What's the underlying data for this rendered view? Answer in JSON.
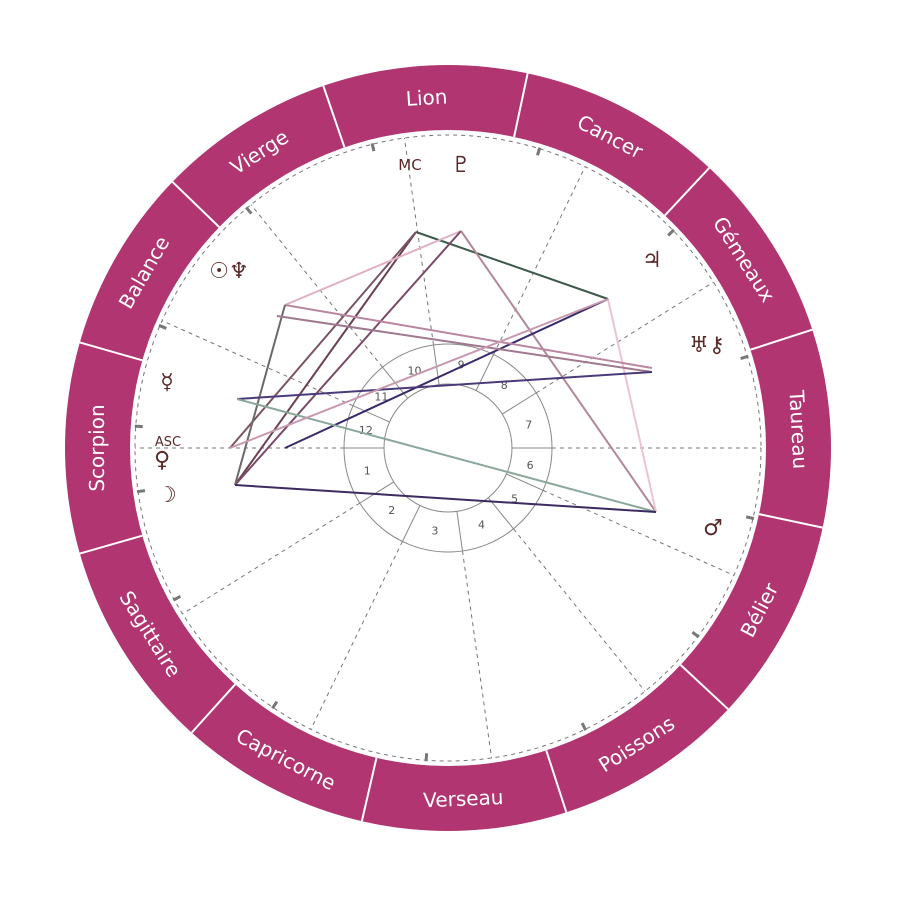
{
  "colors": {
    "ring": "#b03571",
    "divider": "#ffffff",
    "dashed": "#777777",
    "house_ring": "#888888",
    "glyph": "#5a2a2a"
  },
  "signs": [
    {
      "label": "Lion"
    },
    {
      "label": "Cancer"
    },
    {
      "label": "Gémeaux"
    },
    {
      "label": "Taureau"
    },
    {
      "label": "Bélier"
    },
    {
      "label": "Poissons"
    },
    {
      "label": "Verseau"
    },
    {
      "label": "Capricorne"
    },
    {
      "label": "Sagittaire"
    },
    {
      "label": "Scorpion"
    },
    {
      "label": "Balance"
    },
    {
      "label": "Vierge"
    }
  ],
  "houses": [
    "1",
    "2",
    "3",
    "4",
    "5",
    "6",
    "7",
    "8",
    "9",
    "10",
    "11",
    "12"
  ],
  "points": [
    {
      "id": "mc",
      "label": "MC"
    },
    {
      "id": "asc",
      "label": "ASC"
    }
  ],
  "planets": [
    {
      "id": "pluto",
      "glyph": "♇"
    },
    {
      "id": "jupiter",
      "glyph": "♃"
    },
    {
      "id": "uranus-chiron",
      "glyph": "♅⚷"
    },
    {
      "id": "mars",
      "glyph": "♂"
    },
    {
      "id": "venus",
      "glyph": "♀"
    },
    {
      "id": "moon",
      "glyph": "☽"
    },
    {
      "id": "mercury",
      "glyph": "☿"
    },
    {
      "id": "sun-neptune",
      "glyph": "☉♆"
    }
  ],
  "aspects": [
    {
      "from": "mc",
      "to": "jupiter",
      "color": "#3d5a4a"
    },
    {
      "from": "mc",
      "to": "moon",
      "color": "#6a4050"
    },
    {
      "from": "mc",
      "to": "asc",
      "color": "#7a5560"
    },
    {
      "from": "pluto",
      "to": "sun-neptune",
      "color": "#e0b0c4"
    },
    {
      "from": "pluto",
      "to": "moon",
      "color": "#7a4a66"
    },
    {
      "from": "pluto",
      "to": "mars",
      "color": "#b08898"
    },
    {
      "from": "jupiter",
      "to": "mars",
      "color": "#ecc4d2"
    },
    {
      "from": "jupiter",
      "to": "venus",
      "color": "#3a2a6a"
    },
    {
      "from": "sun-neptune",
      "to": "uranus-chiron",
      "color": "#b886a0"
    },
    {
      "from": "sun-neptune",
      "to": "moon",
      "color": "#6a6a6a"
    },
    {
      "from": "sun-neptune",
      "to": "uranus-chiron",
      "color": "#a07890"
    },
    {
      "from": "mercury",
      "to": "uranus-chiron",
      "color": "#4a3a7a"
    },
    {
      "from": "mercury",
      "to": "mars",
      "color": "#8aa89a"
    },
    {
      "from": "moon",
      "to": "mars",
      "color": "#3d2a60"
    },
    {
      "from": "venus",
      "to": "uranus-chiron",
      "color": "#c898b0"
    }
  ]
}
